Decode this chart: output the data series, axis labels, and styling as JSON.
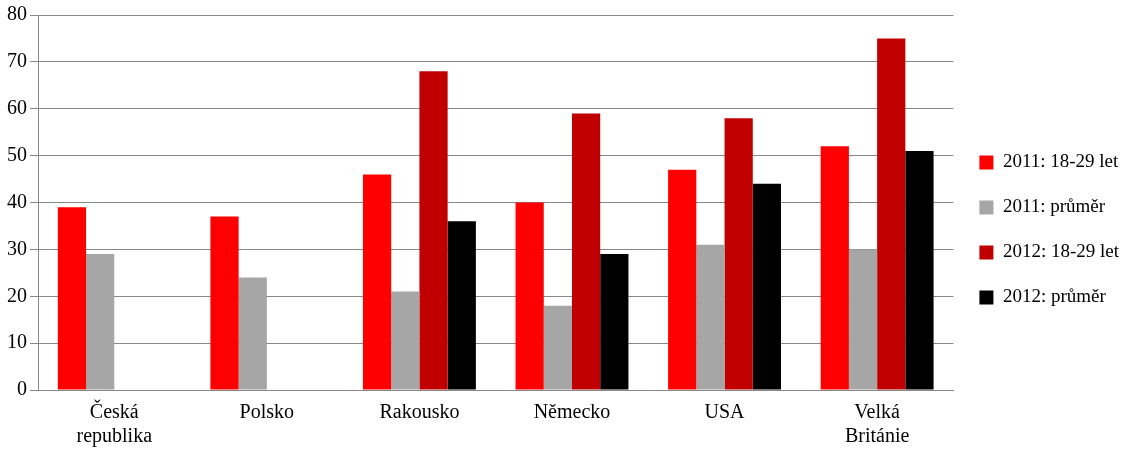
{
  "chart_data": {
    "type": "bar",
    "categories": [
      "Česká republika",
      "Polsko",
      "Rakousko",
      "Německo",
      "USA",
      "Velká Británie"
    ],
    "series": [
      {
        "name": "2011: 18-29 let",
        "color": "#ff0000",
        "values": [
          39,
          37,
          46,
          40,
          47,
          52
        ]
      },
      {
        "name": "2011: průměr",
        "color": "#a6a6a6",
        "values": [
          29,
          24,
          21,
          18,
          31,
          30
        ]
      },
      {
        "name": "2012: 18-29 let",
        "color": "#c00000",
        "values": [
          null,
          null,
          68,
          59,
          58,
          75
        ]
      },
      {
        "name": "2012: průměr",
        "color": "#000000",
        "values": [
          null,
          null,
          36,
          29,
          44,
          51
        ]
      }
    ],
    "ylim": [
      0,
      80
    ],
    "yticks": [
      0,
      10,
      20,
      30,
      40,
      50,
      60,
      70,
      80
    ],
    "grid": "y",
    "legend": "right"
  }
}
